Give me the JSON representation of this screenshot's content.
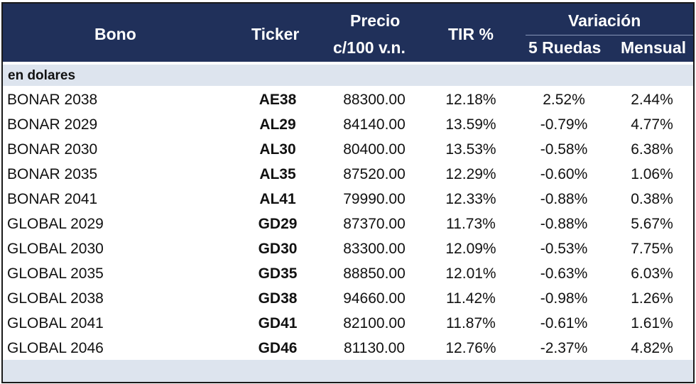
{
  "header": {
    "bono": "Bono",
    "ticker": "Ticker",
    "precio_line1": "Precio",
    "precio_line2": "c/100 v.n.",
    "tir": "TIR %",
    "variacion": "Variación",
    "ruedas": "5 Ruedas",
    "mensual": "Mensual"
  },
  "section_label": "en dolares",
  "rows": [
    {
      "bono": "BONAR 2038",
      "ticker": "AE38",
      "precio": "88300.00",
      "tir": "12.18%",
      "ruedas": "2.52%",
      "mensual": "2.44%"
    },
    {
      "bono": "BONAR 2029",
      "ticker": "AL29",
      "precio": "84140.00",
      "tir": "13.59%",
      "ruedas": "-0.79%",
      "mensual": "4.77%"
    },
    {
      "bono": "BONAR 2030",
      "ticker": "AL30",
      "precio": "80400.00",
      "tir": "13.53%",
      "ruedas": "-0.58%",
      "mensual": "6.38%"
    },
    {
      "bono": "BONAR 2035",
      "ticker": "AL35",
      "precio": "87520.00",
      "tir": "12.29%",
      "ruedas": "-0.60%",
      "mensual": "1.06%"
    },
    {
      "bono": "BONAR 2041",
      "ticker": "AL41",
      "precio": "79990.00",
      "tir": "12.33%",
      "ruedas": "-0.88%",
      "mensual": "0.38%"
    },
    {
      "bono": "GLOBAL 2029",
      "ticker": "GD29",
      "precio": "87370.00",
      "tir": "11.73%",
      "ruedas": "-0.88%",
      "mensual": "5.67%"
    },
    {
      "bono": "GLOBAL 2030",
      "ticker": "GD30",
      "precio": "83300.00",
      "tir": "12.09%",
      "ruedas": "-0.53%",
      "mensual": "7.75%"
    },
    {
      "bono": "GLOBAL 2035",
      "ticker": "GD35",
      "precio": "88850.00",
      "tir": "12.01%",
      "ruedas": "-0.63%",
      "mensual": "6.03%"
    },
    {
      "bono": "GLOBAL 2038",
      "ticker": "GD38",
      "precio": "94660.00",
      "tir": "11.42%",
      "ruedas": "-0.98%",
      "mensual": "1.26%"
    },
    {
      "bono": "GLOBAL 2041",
      "ticker": "GD41",
      "precio": "82100.00",
      "tir": "11.87%",
      "ruedas": "-0.61%",
      "mensual": "1.61%"
    },
    {
      "bono": "GLOBAL 2046",
      "ticker": "GD46",
      "precio": "81130.00",
      "tir": "12.76%",
      "ruedas": "-2.37%",
      "mensual": "4.82%"
    }
  ],
  "colors": {
    "header_bg": "#20305a",
    "band_bg": "#dde4ee"
  }
}
